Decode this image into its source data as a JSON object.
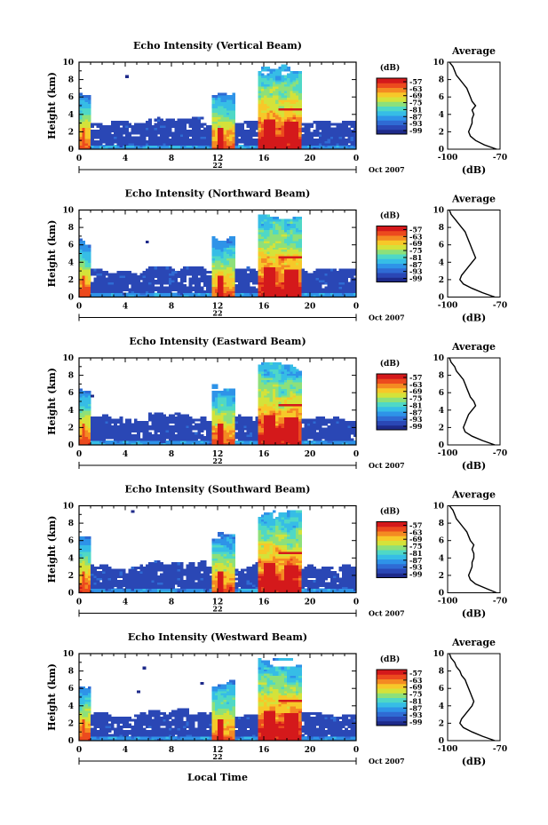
{
  "figure": {
    "xlabel": "Local Time",
    "date_label": "22",
    "month_year_label": "Oct 2007",
    "colorbar_unit": "(dB)",
    "avg_title": "Average",
    "avg_xlabel": "(dB)",
    "height_label": "Height (km)"
  },
  "colors": {
    "colormap": [
      "#1e2a8a",
      "#2a47b5",
      "#2f6bd4",
      "#2e93e8",
      "#36bde6",
      "#4fd8c6",
      "#8de07a",
      "#d4e23a",
      "#f7c829",
      "#f48a22",
      "#ec4a1e",
      "#d4191b"
    ],
    "frame": "#000000",
    "background": "#ffffff"
  },
  "chart_data": [
    {
      "type": "heatmap",
      "title": "Echo Intensity (Vertical Beam)",
      "ylabel": "Height (km)",
      "xlim": [
        0,
        24
      ],
      "ylim": [
        0,
        10
      ],
      "xticks": [
        "0",
        "4",
        "8",
        "12",
        "16",
        "20",
        "0"
      ],
      "yticks": [
        "0",
        "2",
        "4",
        "6",
        "8",
        "10"
      ],
      "colorbar": {
        "unit": "(dB)",
        "ticks": [
          "-57",
          "-63",
          "-69",
          "-75",
          "-81",
          "-87",
          "-93",
          "-99"
        ]
      },
      "average_profile": {
        "title": "Average",
        "xlabel": "(dB)",
        "xlim": [
          -100,
          -70
        ],
        "xticks": [
          "-100",
          "-70"
        ],
        "ylim": [
          0,
          10
        ],
        "yticks": [
          "0",
          "2",
          "4",
          "6",
          "8",
          "10"
        ],
        "height_km": [
          0,
          0.5,
          1,
          1.5,
          2,
          2.5,
          3,
          3.5,
          4,
          4.5,
          5,
          5.5,
          6,
          6.5,
          7,
          7.5,
          8,
          8.5,
          9,
          9.5,
          10
        ],
        "db": [
          -72,
          -79,
          -84,
          -87,
          -88,
          -87,
          -86,
          -86,
          -85,
          -86,
          -84,
          -86,
          -87,
          -88,
          -89,
          -91,
          -93,
          -95,
          -96,
          -97,
          -99
        ]
      }
    },
    {
      "type": "heatmap",
      "title": "Echo Intensity (Northward Beam)",
      "ylabel": "Height (km)",
      "xlim": [
        0,
        24
      ],
      "ylim": [
        0,
        10
      ],
      "xticks": [
        "0",
        "4",
        "8",
        "12",
        "16",
        "20",
        "0"
      ],
      "yticks": [
        "0",
        "2",
        "4",
        "6",
        "8",
        "10"
      ],
      "colorbar": {
        "unit": "(dB)",
        "ticks": [
          "-57",
          "-63",
          "-69",
          "-75",
          "-81",
          "-87",
          "-93",
          "-99"
        ]
      },
      "average_profile": {
        "title": "Average",
        "xlabel": "(dB)",
        "xlim": [
          -100,
          -70
        ],
        "xticks": [
          "-100",
          "-70"
        ],
        "ylim": [
          0,
          10
        ],
        "yticks": [
          "0",
          "2",
          "4",
          "6",
          "8",
          "10"
        ],
        "height_km": [
          0,
          0.5,
          1,
          1.5,
          2,
          2.5,
          3,
          3.5,
          4,
          4.5,
          5,
          5.5,
          6,
          6.5,
          7,
          7.5,
          8,
          8.5,
          9,
          9.5,
          10
        ],
        "db": [
          -73,
          -80,
          -86,
          -91,
          -93,
          -92,
          -90,
          -88,
          -86,
          -84,
          -85,
          -86,
          -87,
          -88,
          -89,
          -90,
          -92,
          -94,
          -96,
          -98,
          -99
        ]
      }
    },
    {
      "type": "heatmap",
      "title": "Echo Intensity (Eastward Beam)",
      "ylabel": "Height (km)",
      "xlim": [
        0,
        24
      ],
      "ylim": [
        0,
        10
      ],
      "xticks": [
        "0",
        "4",
        "8",
        "12",
        "16",
        "20",
        "0"
      ],
      "yticks": [
        "0",
        "2",
        "4",
        "6",
        "8",
        "10"
      ],
      "colorbar": {
        "unit": "(dB)",
        "ticks": [
          "-57",
          "-63",
          "-69",
          "-75",
          "-81",
          "-87",
          "-93",
          "-99"
        ]
      },
      "average_profile": {
        "title": "Average",
        "xlabel": "(dB)",
        "xlim": [
          -100,
          -70
        ],
        "xticks": [
          "-100",
          "-70"
        ],
        "ylim": [
          0,
          10
        ],
        "yticks": [
          "0",
          "2",
          "4",
          "6",
          "8",
          "10"
        ],
        "height_km": [
          0,
          0.5,
          1,
          1.5,
          2,
          2.5,
          3,
          3.5,
          4,
          4.5,
          5,
          5.5,
          6,
          6.5,
          7,
          7.5,
          8,
          8.5,
          9,
          9.5,
          10
        ],
        "db": [
          -73,
          -80,
          -86,
          -90,
          -91,
          -90,
          -89,
          -88,
          -86,
          -84,
          -85,
          -87,
          -88,
          -89,
          -90,
          -91,
          -93,
          -95,
          -96,
          -98,
          -99
        ]
      }
    },
    {
      "type": "heatmap",
      "title": "Echo Intensity (Southward Beam)",
      "ylabel": "Height (km)",
      "xlim": [
        0,
        24
      ],
      "ylim": [
        0,
        10
      ],
      "xticks": [
        "0",
        "4",
        "8",
        "12",
        "16",
        "20",
        "0"
      ],
      "yticks": [
        "0",
        "2",
        "4",
        "6",
        "8",
        "10"
      ],
      "colorbar": {
        "unit": "(dB)",
        "ticks": [
          "-57",
          "-63",
          "-69",
          "-75",
          "-81",
          "-87",
          "-93",
          "-99"
        ]
      },
      "average_profile": {
        "title": "Average",
        "xlabel": "(dB)",
        "xlim": [
          -100,
          -70
        ],
        "xticks": [
          "-100",
          "-70"
        ],
        "ylim": [
          0,
          10
        ],
        "yticks": [
          "0",
          "2",
          "4",
          "6",
          "8",
          "10"
        ],
        "height_km": [
          0,
          0.5,
          1,
          1.5,
          2,
          2.5,
          3,
          3.5,
          4,
          4.5,
          5,
          5.5,
          6,
          6.5,
          7,
          7.5,
          8,
          8.5,
          9,
          9.5,
          10
        ],
        "db": [
          -72,
          -78,
          -84,
          -87,
          -88,
          -87,
          -86,
          -86,
          -85,
          -85,
          -86,
          -85,
          -87,
          -88,
          -89,
          -91,
          -93,
          -95,
          -96,
          -97,
          -99
        ]
      }
    },
    {
      "type": "heatmap",
      "title": "Echo Intensity (Westward Beam)",
      "ylabel": "Height (km)",
      "xlim": [
        0,
        24
      ],
      "ylim": [
        0,
        10
      ],
      "xticks": [
        "0",
        "4",
        "8",
        "12",
        "16",
        "20",
        "0"
      ],
      "yticks": [
        "0",
        "2",
        "4",
        "6",
        "8",
        "10"
      ],
      "colorbar": {
        "unit": "(dB)",
        "ticks": [
          "-57",
          "-63",
          "-69",
          "-75",
          "-81",
          "-87",
          "-93",
          "-99"
        ]
      },
      "average_profile": {
        "title": "Average",
        "xlabel": "(dB)",
        "xlim": [
          -100,
          -70
        ],
        "xticks": [
          "-100",
          "-70"
        ],
        "ylim": [
          0,
          10
        ],
        "yticks": [
          "0",
          "2",
          "4",
          "6",
          "8",
          "10"
        ],
        "height_km": [
          0,
          0.5,
          1,
          1.5,
          2,
          2.5,
          3,
          3.5,
          4,
          4.5,
          5,
          5.5,
          6,
          6.5,
          7,
          7.5,
          8,
          8.5,
          9,
          9.5,
          10
        ],
        "db": [
          -73,
          -80,
          -86,
          -91,
          -93,
          -92,
          -90,
          -88,
          -86,
          -85,
          -86,
          -87,
          -88,
          -89,
          -90,
          -92,
          -93,
          -95,
          -96,
          -98,
          -99
        ]
      }
    }
  ]
}
